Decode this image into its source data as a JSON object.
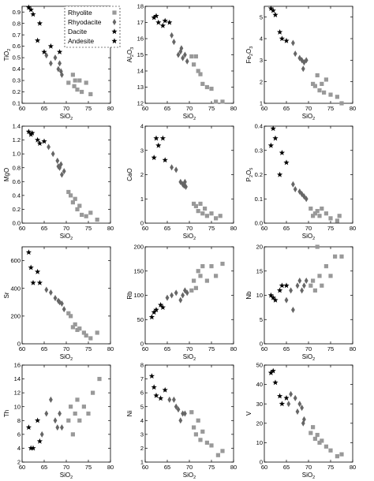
{
  "legend": {
    "items": [
      {
        "label": "Rhyolite",
        "marker": "square"
      },
      {
        "label": "Rhyodacite",
        "marker": "diamond"
      },
      {
        "label": "Dacite",
        "marker": "star"
      },
      {
        "label": "Andesite",
        "marker": "star"
      }
    ]
  },
  "colors": {
    "rhyolite": "#999999",
    "rhyodacite": "#666666",
    "dacite_andesite": "#000000",
    "frame": "#000000"
  },
  "chart_data": [
    {
      "type": "scatter",
      "ylabel": "TiO2",
      "xlabel": "SiO2",
      "xlim": [
        60,
        80
      ],
      "ylim": [
        0.1,
        0.95
      ],
      "xticks": [
        60,
        65,
        70,
        75,
        80
      ],
      "yticks": [
        0.1,
        0.2,
        0.3,
        0.4,
        0.5,
        0.6,
        0.7,
        0.8,
        0.9
      ],
      "series": [
        {
          "name": "Rhyolite",
          "x": [
            70.5,
            71.5,
            71.8,
            72.5,
            73.0,
            73.5,
            74.5,
            75.5,
            72.0
          ],
          "y": [
            0.28,
            0.35,
            0.25,
            0.22,
            0.3,
            0.2,
            0.28,
            0.18,
            0.3
          ]
        },
        {
          "name": "Rhyodacite",
          "x": [
            65.5,
            66.5,
            67.5,
            68.5,
            68.8,
            69.0,
            68.2
          ],
          "y": [
            0.52,
            0.45,
            0.5,
            0.45,
            0.38,
            0.35,
            0.4
          ]
        },
        {
          "name": "Dacite/Andesite",
          "x": [
            61.5,
            62.0,
            62.5,
            63.5,
            64.0,
            65.0,
            66.5,
            68.5
          ],
          "y": [
            0.94,
            0.92,
            0.88,
            0.65,
            0.8,
            0.55,
            0.6,
            0.55
          ]
        }
      ]
    },
    {
      "type": "scatter",
      "ylabel": "Al2O3",
      "xlabel": "SiO2",
      "xlim": [
        60,
        80
      ],
      "ylim": [
        12,
        18
      ],
      "xticks": [
        60,
        65,
        70,
        75,
        80
      ],
      "yticks": [
        12,
        13,
        14,
        15,
        16,
        17,
        18
      ],
      "series": [
        {
          "name": "Rhyolite",
          "x": [
            70.5,
            71.0,
            71.5,
            72.0,
            72.5,
            73.0,
            74.0,
            75.0,
            76.0,
            77.5
          ],
          "y": [
            14.9,
            14.4,
            14.9,
            14.0,
            13.8,
            13.2,
            13.0,
            12.9,
            12.1,
            12.1
          ]
        },
        {
          "name": "Rhyodacite",
          "x": [
            66.0,
            66.5,
            67.5,
            68.0,
            68.5,
            69.0,
            69.5,
            68.2
          ],
          "y": [
            16.2,
            15.8,
            15.0,
            15.2,
            14.8,
            15.0,
            14.6,
            15.4
          ]
        },
        {
          "name": "Dacite/Andesite",
          "x": [
            62.0,
            62.5,
            63.0,
            64.0,
            64.5,
            65.5
          ],
          "y": [
            17.3,
            17.4,
            17.0,
            16.8,
            17.1,
            17.0
          ]
        }
      ]
    },
    {
      "type": "scatter",
      "ylabel": "Fe2O3",
      "xlabel": "SiO2",
      "xlim": [
        60,
        80
      ],
      "ylim": [
        1,
        5.5
      ],
      "xticks": [
        60,
        65,
        70,
        75,
        80
      ],
      "yticks": [
        1,
        2,
        3,
        4,
        5
      ],
      "series": [
        {
          "name": "Rhyolite",
          "x": [
            71.0,
            71.5,
            72.0,
            72.5,
            73.0,
            73.5,
            74.0,
            75.0,
            76.5,
            77.5
          ],
          "y": [
            1.9,
            1.8,
            2.3,
            1.6,
            1.9,
            1.5,
            2.1,
            1.4,
            1.3,
            1.0
          ]
        },
        {
          "name": "Rhyodacite",
          "x": [
            66.5,
            67.0,
            68.0,
            68.5,
            69.0,
            69.5,
            68.8
          ],
          "y": [
            3.8,
            3.3,
            3.1,
            3.0,
            2.9,
            3.0,
            2.6
          ]
        },
        {
          "name": "Dacite/Andesite",
          "x": [
            61.5,
            62.0,
            62.5,
            63.5,
            64.0,
            65.0
          ],
          "y": [
            5.4,
            5.3,
            5.1,
            4.3,
            4.0,
            3.9
          ]
        }
      ]
    },
    {
      "type": "scatter",
      "ylabel": "MgO",
      "xlabel": "SiO2",
      "xlim": [
        60,
        80
      ],
      "ylim": [
        0,
        1.4
      ],
      "xticks": [
        60,
        65,
        70,
        75,
        80
      ],
      "yticks": [
        0,
        0.2,
        0.4,
        0.6,
        0.8,
        1.0,
        1.2,
        1.4
      ],
      "series": [
        {
          "name": "Rhyolite",
          "x": [
            70.5,
            71.0,
            71.5,
            72.0,
            72.5,
            73.0,
            73.5,
            74.5,
            75.5,
            77.0
          ],
          "y": [
            0.45,
            0.4,
            0.3,
            0.35,
            0.2,
            0.25,
            0.12,
            0.1,
            0.15,
            0.05
          ]
        },
        {
          "name": "Rhyodacite",
          "x": [
            66.0,
            67.0,
            68.0,
            68.5,
            68.8,
            69.0,
            69.5,
            68.2
          ],
          "y": [
            1.1,
            1.0,
            0.9,
            0.8,
            0.85,
            0.7,
            0.75,
            0.82
          ]
        },
        {
          "name": "Dacite/Andesite",
          "x": [
            61.5,
            62.0,
            62.3,
            63.5,
            64.0,
            65.0
          ],
          "y": [
            1.32,
            1.28,
            1.3,
            1.2,
            1.15,
            1.18
          ]
        }
      ]
    },
    {
      "type": "scatter",
      "ylabel": "CaO",
      "xlabel": "SiO2",
      "xlim": [
        60,
        80
      ],
      "ylim": [
        0,
        4
      ],
      "xticks": [
        60,
        65,
        70,
        75,
        80
      ],
      "yticks": [
        0,
        1,
        2,
        3,
        4
      ],
      "series": [
        {
          "name": "Rhyolite",
          "x": [
            71.0,
            71.5,
            72.0,
            72.5,
            73.0,
            73.5,
            74.0,
            75.0,
            76.0,
            77.0
          ],
          "y": [
            0.8,
            0.7,
            0.5,
            0.8,
            0.4,
            0.6,
            0.3,
            0.4,
            0.2,
            0.3
          ]
        },
        {
          "name": "Rhyodacite",
          "x": [
            66.0,
            67.0,
            68.0,
            68.5,
            69.0,
            69.2,
            68.8
          ],
          "y": [
            2.3,
            2.2,
            1.7,
            1.6,
            1.7,
            1.5,
            1.55
          ]
        },
        {
          "name": "Dacite/Andesite",
          "x": [
            62.0,
            62.5,
            63.0,
            64.0,
            64.5
          ],
          "y": [
            2.7,
            3.5,
            3.2,
            3.5,
            2.6
          ]
        }
      ]
    },
    {
      "type": "scatter",
      "ylabel": "P2O5",
      "xlabel": "SiO2",
      "xlim": [
        60,
        80
      ],
      "ylim": [
        0,
        0.4
      ],
      "xticks": [
        60,
        65,
        70,
        75,
        80
      ],
      "yticks": [
        0,
        0.1,
        0.2,
        0.3,
        0.4
      ],
      "series": [
        {
          "name": "Rhyolite",
          "x": [
            70.5,
            71.0,
            71.5,
            72.0,
            72.5,
            73.0,
            74.0,
            75.0,
            76.5,
            77.0
          ],
          "y": [
            0.06,
            0.03,
            0.04,
            0.05,
            0.03,
            0.06,
            0.04,
            0.02,
            0.01,
            0.03
          ]
        },
        {
          "name": "Rhyodacite",
          "x": [
            66.5,
            67.0,
            68.0,
            68.5,
            69.0,
            69.5
          ],
          "y": [
            0.16,
            0.14,
            0.13,
            0.12,
            0.11,
            0.1
          ]
        },
        {
          "name": "Dacite/Andesite",
          "x": [
            61.5,
            62.0,
            62.5,
            63.5,
            64.0,
            65.0
          ],
          "y": [
            0.32,
            0.39,
            0.35,
            0.2,
            0.29,
            0.25
          ]
        }
      ]
    },
    {
      "type": "scatter",
      "ylabel": "Sr",
      "xlabel": "SiO2",
      "xlim": [
        60,
        80
      ],
      "ylim": [
        0,
        700
      ],
      "xticks": [
        60,
        65,
        70,
        75,
        80
      ],
      "yticks": [
        0,
        200,
        400,
        600
      ],
      "series": [
        {
          "name": "Rhyolite",
          "x": [
            70.5,
            71.0,
            71.5,
            72.0,
            72.5,
            73.0,
            74.0,
            74.5,
            75.5,
            77.0
          ],
          "y": [
            220,
            200,
            120,
            140,
            100,
            110,
            80,
            60,
            40,
            80
          ]
        },
        {
          "name": "Rhyodacite",
          "x": [
            65.5,
            66.5,
            67.5,
            68.5,
            69.0,
            69.5,
            68.2
          ],
          "y": [
            390,
            370,
            330,
            300,
            290,
            250,
            310
          ]
        },
        {
          "name": "Dacite/Andesite",
          "x": [
            61.5,
            62.0,
            62.5,
            63.5,
            64.0
          ],
          "y": [
            660,
            550,
            440,
            520,
            440
          ]
        }
      ]
    },
    {
      "type": "scatter",
      "ylabel": "Rb",
      "xlabel": "SiO2",
      "xlim": [
        60,
        80
      ],
      "ylim": [
        0,
        200
      ],
      "xticks": [
        60,
        65,
        70,
        75,
        80
      ],
      "yticks": [
        0,
        50,
        100,
        150,
        200
      ],
      "series": [
        {
          "name": "Rhyolite",
          "x": [
            70.5,
            71.0,
            71.5,
            72.0,
            72.5,
            73.0,
            74.0,
            75.0,
            76.0,
            77.5
          ],
          "y": [
            110,
            130,
            115,
            150,
            140,
            160,
            130,
            160,
            140,
            165
          ]
        },
        {
          "name": "Rhyodacite",
          "x": [
            65.0,
            66.0,
            67.0,
            68.0,
            68.5,
            69.0,
            69.5
          ],
          "y": [
            95,
            100,
            105,
            90,
            100,
            110,
            105
          ]
        },
        {
          "name": "Dacite/Andesite",
          "x": [
            61.5,
            62.0,
            62.5,
            63.5,
            64.0
          ],
          "y": [
            55,
            65,
            70,
            80,
            75
          ]
        }
      ]
    },
    {
      "type": "scatter",
      "ylabel": "Nb",
      "xlabel": "SiO2",
      "xlim": [
        60,
        80
      ],
      "ylim": [
        0,
        20
      ],
      "xticks": [
        60,
        65,
        70,
        75,
        80
      ],
      "yticks": [
        0,
        5,
        10,
        15,
        20
      ],
      "series": [
        {
          "name": "Rhyolite",
          "x": [
            70.5,
            71.0,
            71.5,
            72.0,
            72.5,
            73.0,
            74.0,
            75.0,
            76.0,
            77.5
          ],
          "y": [
            12,
            13,
            11,
            20,
            14,
            12,
            16,
            14,
            18,
            18
          ]
        },
        {
          "name": "Rhyodacite",
          "x": [
            65.0,
            66.0,
            66.5,
            67.5,
            68.0,
            68.5,
            69.0,
            69.5
          ],
          "y": [
            9,
            11,
            7,
            12,
            13,
            11,
            12,
            13
          ]
        },
        {
          "name": "Dacite/Andesite",
          "x": [
            61.5,
            62.0,
            62.5,
            63.5,
            64.0,
            65.0
          ],
          "y": [
            10,
            9.5,
            9,
            11,
            12,
            12
          ]
        }
      ]
    },
    {
      "type": "scatter",
      "ylabel": "Th",
      "xlabel": "SiO2",
      "xlim": [
        60,
        80
      ],
      "ylim": [
        2,
        16
      ],
      "xticks": [
        60,
        65,
        70,
        75,
        80
      ],
      "yticks": [
        2,
        4,
        6,
        8,
        10,
        12,
        14,
        16
      ],
      "series": [
        {
          "name": "Rhyolite",
          "x": [
            70.5,
            71.0,
            71.5,
            72.0,
            72.5,
            73.0,
            74.0,
            75.0,
            76.0,
            77.5
          ],
          "y": [
            8,
            10,
            6,
            9,
            11,
            8,
            10,
            9,
            12,
            14
          ]
        },
        {
          "name": "Rhyodacite",
          "x": [
            64.5,
            65.5,
            66.5,
            67.5,
            68.0,
            68.5,
            69.0
          ],
          "y": [
            6,
            9,
            11,
            8,
            7,
            9,
            7
          ]
        },
        {
          "name": "Dacite/Andesite",
          "x": [
            61.5,
            62.0,
            62.5,
            63.5,
            64.0
          ],
          "y": [
            7,
            4,
            4,
            8,
            5
          ]
        }
      ]
    },
    {
      "type": "scatter",
      "ylabel": "Ni",
      "xlabel": "SiO2",
      "xlim": [
        60,
        80
      ],
      "ylim": [
        1,
        8
      ],
      "xticks": [
        60,
        65,
        70,
        75,
        80
      ],
      "yticks": [
        1,
        2,
        3,
        4,
        5,
        6,
        7,
        8
      ],
      "series": [
        {
          "name": "Rhyolite",
          "x": [
            70.5,
            71.0,
            71.5,
            72.0,
            72.5,
            73.0,
            74.0,
            75.0,
            76.5,
            77.5
          ],
          "y": [
            4.6,
            3.5,
            3.0,
            4.0,
            2.6,
            3.2,
            2.4,
            2.2,
            1.5,
            1.8
          ]
        },
        {
          "name": "Rhyodacite",
          "x": [
            65.5,
            66.5,
            67.0,
            67.5,
            68.0,
            68.5,
            69.0
          ],
          "y": [
            5.5,
            5.5,
            5.0,
            4.8,
            4.0,
            4.5,
            4.5
          ]
        },
        {
          "name": "Dacite/Andesite",
          "x": [
            61.5,
            62.0,
            62.5,
            63.5,
            64.5
          ],
          "y": [
            7.2,
            6.4,
            5.8,
            5.6,
            6.2
          ]
        }
      ]
    },
    {
      "type": "scatter",
      "ylabel": "V",
      "xlabel": "SiO2",
      "xlim": [
        60,
        80
      ],
      "ylim": [
        0,
        50
      ],
      "xticks": [
        60,
        65,
        70,
        75,
        80
      ],
      "yticks": [
        0,
        10,
        20,
        30,
        40,
        50
      ],
      "series": [
        {
          "name": "Rhyolite",
          "x": [
            70.5,
            71.0,
            71.5,
            72.0,
            72.5,
            73.0,
            74.0,
            75.0,
            76.5,
            77.5
          ],
          "y": [
            15,
            18,
            12,
            14,
            10,
            11,
            8,
            6,
            3,
            4
          ]
        },
        {
          "name": "Rhyodacite",
          "x": [
            65.5,
            66.0,
            67.0,
            67.5,
            68.0,
            68.5,
            69.0,
            68.8
          ],
          "y": [
            30,
            35,
            33,
            26,
            30,
            28,
            22,
            20
          ]
        },
        {
          "name": "Dacite/Andesite",
          "x": [
            61.5,
            62.0,
            62.5,
            63.5,
            64.0,
            65.0
          ],
          "y": [
            46,
            47,
            41,
            34,
            30,
            33
          ]
        }
      ]
    }
  ]
}
